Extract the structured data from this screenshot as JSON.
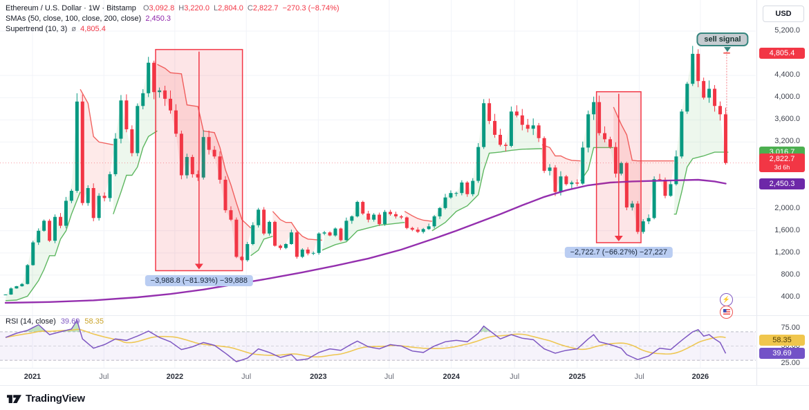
{
  "header": {
    "line1": {
      "title": "Ethereum / U.S. Dollar · 1W · Bitstamp",
      "o_label": "O",
      "o": "3,092.8",
      "h_label": "H",
      "h": "3,220.0",
      "l_label": "L",
      "l": "2,804.0",
      "c_label": "C",
      "c": "2,822.7",
      "change": "−270.3 (−8.74%)"
    },
    "line2": {
      "name": "SMAs (50, close, 100, close, 200, close)",
      "value": "2,450.3"
    },
    "line3": {
      "name": "Supertrend (10, 3)",
      "avg_symbol": "ø",
      "value": "4,805.4"
    }
  },
  "rsi_legend": {
    "name": "RSI (14, close)",
    "value_rsi": "39.69",
    "value_ma": "58.35"
  },
  "price_axis": {
    "currency": "USD",
    "ticks": [
      {
        "label": "5,200.0",
        "price": 5200
      },
      {
        "label": "4,400.0",
        "price": 4400
      },
      {
        "label": "4,000.0",
        "price": 4000
      },
      {
        "label": "3,600.0",
        "price": 3600
      },
      {
        "label": "3,200.0",
        "price": 3200
      },
      {
        "label": "2,000.0",
        "price": 2000
      },
      {
        "label": "1,600.0",
        "price": 1600
      },
      {
        "label": "1,200.0",
        "price": 1200
      },
      {
        "label": "800.0",
        "price": 800
      },
      {
        "label": "400.0",
        "price": 400
      }
    ],
    "badges": [
      {
        "label": "4,805.4",
        "price": 4805.4,
        "bg": "#f23645",
        "fg": "#ffffff"
      },
      {
        "label": "3,016.7",
        "price": 3016.7,
        "bg": "#4caf50",
        "fg": "#ffffff"
      },
      {
        "label": "2,822.7",
        "sub": "3d 6h",
        "price": 2822.7,
        "bg": "#f23645",
        "fg": "#ffffff"
      },
      {
        "label": "2,450.3",
        "price": 2450.3,
        "bg": "#6d28a8",
        "fg": "#ffffff"
      }
    ]
  },
  "rsi_axis": {
    "ticks": [
      {
        "label": "75.00",
        "value": 75
      },
      {
        "label": "50.00",
        "value": 50
      },
      {
        "label": "25.00",
        "value": 25
      }
    ],
    "badges": [
      {
        "label": "58.35",
        "value": 58.35,
        "bg": "#f0c64d",
        "fg": "#4d3c05"
      },
      {
        "label": "39.69",
        "value": 39.69,
        "bg": "#7352c7",
        "fg": "#ffffff"
      }
    ]
  },
  "time_axis": {
    "ticks": [
      {
        "label": "2021",
        "i": 4.9,
        "major": true
      },
      {
        "label": "Jul",
        "i": 17.9,
        "major": false
      },
      {
        "label": "2022",
        "i": 30.8,
        "major": true
      },
      {
        "label": "Jul",
        "i": 43.8,
        "major": false
      },
      {
        "label": "2023",
        "i": 56.9,
        "major": true
      },
      {
        "label": "Jul",
        "i": 69.8,
        "major": false
      },
      {
        "label": "2024",
        "i": 81.1,
        "major": true
      },
      {
        "label": "Jul",
        "i": 92.6,
        "major": false
      },
      {
        "label": "2025",
        "i": 104.0,
        "major": true
      },
      {
        "label": "Jul",
        "i": 115.3,
        "major": false
      },
      {
        "label": "2026",
        "i": 126.4,
        "major": true
      }
    ]
  },
  "chart_data": [
    {
      "type": "candlestick",
      "title": "Ethereum / U.S. Dollar, weekly, Bitstamp",
      "x_unit": "two-week steps, Nov 2020 to Nov 2025",
      "ylim": [
        400,
        5200
      ],
      "closes": [
        450,
        560,
        600,
        640,
        980,
        1390,
        1600,
        1780,
        1420,
        1850,
        1690,
        2140,
        2320,
        3930,
        2100,
        2370,
        1830,
        2230,
        2190,
        2620,
        3260,
        3950,
        3430,
        3000,
        3850,
        4080,
        4630,
        4100,
        4130,
        3980,
        3770,
        3350,
        2600,
        2930,
        2620,
        2560,
        3290,
        3060,
        2940,
        2520,
        1970,
        1800,
        1130,
        1070,
        1360,
        1700,
        1980,
        1550,
        1760,
        1330,
        1290,
        1360,
        1570,
        1130,
        1260,
        1190,
        1200,
        1550,
        1570,
        1515,
        1640,
        1430,
        1780,
        1860,
        2120,
        1910,
        1800,
        1890,
        1720,
        1940,
        1900,
        1860,
        1840,
        1650,
        1620,
        1580,
        1630,
        1680,
        1860,
        2010,
        2200,
        2280,
        2280,
        2470,
        2260,
        2500,
        3110,
        3900,
        3580,
        3330,
        3150,
        3130,
        3750,
        3680,
        3510,
        3440,
        3500,
        3270,
        2680,
        2740,
        2300,
        2580,
        2440,
        2470,
        2450,
        3100,
        3700,
        3920,
        3360,
        3250,
        3110,
        2630,
        2820,
        2020,
        2090,
        1580,
        1770,
        1830,
        2530,
        2520,
        2230,
        2440,
        2940,
        3750,
        4250,
        4790,
        4300,
        4000,
        4160,
        3850,
        3700,
        2822.7
      ],
      "last_price": 2822.7,
      "sma_200w": [
        [
          0,
          300
        ],
        [
          8,
          315
        ],
        [
          16,
          345
        ],
        [
          24,
          400
        ],
        [
          30,
          460
        ],
        [
          36,
          540
        ],
        [
          42,
          640
        ],
        [
          48,
          740
        ],
        [
          54,
          850
        ],
        [
          60,
          970
        ],
        [
          66,
          1100
        ],
        [
          72,
          1260
        ],
        [
          78,
          1460
        ],
        [
          82,
          1600
        ],
        [
          86,
          1750
        ],
        [
          90,
          1900
        ],
        [
          94,
          2060
        ],
        [
          98,
          2210
        ],
        [
          102,
          2330
        ],
        [
          106,
          2420
        ],
        [
          110,
          2470
        ],
        [
          114,
          2490
        ],
        [
          118,
          2500
        ],
        [
          122,
          2510
        ],
        [
          126,
          2520
        ],
        [
          129,
          2490
        ],
        [
          131,
          2450.3
        ]
      ],
      "supertrend": [
        {
          "dir": "up",
          "pts": [
            [
              0,
              340
            ],
            [
              2,
              350
            ],
            [
              4,
              420
            ],
            [
              5,
              560
            ],
            [
              6,
              700
            ],
            [
              7,
              900
            ],
            [
              8,
              1150
            ],
            [
              9,
              1150
            ],
            [
              10,
              1450
            ],
            [
              11,
              1600
            ],
            [
              12,
              1900
            ],
            [
              13.6,
              2300
            ]
          ]
        },
        {
          "dir": "down",
          "pts": [
            [
              13.6,
              4150
            ],
            [
              15,
              3900
            ],
            [
              16,
              3300
            ],
            [
              17,
              3200
            ],
            [
              19.6,
              3150
            ]
          ]
        },
        {
          "dir": "up",
          "pts": [
            [
              19.6,
              1900
            ],
            [
              21,
              2300
            ],
            [
              22,
              2600
            ],
            [
              23,
              2600
            ],
            [
              24,
              2750
            ],
            [
              25,
              3100
            ],
            [
              26,
              3300
            ],
            [
              27.6,
              3400
            ]
          ]
        },
        {
          "dir": "down",
          "pts": [
            [
              27.6,
              4600
            ],
            [
              29,
              4530
            ],
            [
              30,
              4450
            ],
            [
              32,
              4430
            ],
            [
              33,
              3870
            ],
            [
              35,
              3840
            ],
            [
              36,
              3400
            ],
            [
              38,
              3370
            ],
            [
              39,
              3100
            ],
            [
              40,
              2700
            ],
            [
              41,
              2430
            ],
            [
              42,
              2100
            ],
            [
              43,
              1800
            ],
            [
              44.6,
              1650
            ]
          ]
        },
        {
          "dir": "up",
          "pts": [
            [
              44.6,
              1150
            ],
            [
              46,
              1250
            ],
            [
              47,
              1450
            ],
            [
              48.6,
              1500
            ]
          ]
        },
        {
          "dir": "down",
          "pts": [
            [
              48.6,
              1950
            ],
            [
              50,
              1800
            ],
            [
              51,
              1750
            ],
            [
              52,
              1750
            ],
            [
              53,
              1600
            ],
            [
              54,
              1500
            ],
            [
              55,
              1450
            ],
            [
              57.6,
              1430
            ]
          ]
        },
        {
          "dir": "up",
          "pts": [
            [
              57.6,
              1250
            ],
            [
              60,
              1350
            ],
            [
              62,
              1400
            ],
            [
              64,
              1600
            ],
            [
              66,
              1650
            ],
            [
              68,
              1700
            ],
            [
              70,
              1720
            ],
            [
              72.6,
              1750
            ]
          ]
        },
        {
          "dir": "down",
          "pts": [
            [
              72.6,
              1950
            ],
            [
              74,
              1870
            ],
            [
              75,
              1820
            ],
            [
              76,
              1790
            ],
            [
              77.6,
              1770
            ]
          ]
        },
        {
          "dir": "up",
          "pts": [
            [
              77.6,
              1600
            ],
            [
              80,
              1750
            ],
            [
              82,
              1950
            ],
            [
              84,
              2050
            ],
            [
              86,
              2250
            ],
            [
              87,
              2700
            ],
            [
              88,
              3000
            ],
            [
              90,
              3020
            ],
            [
              92,
              3050
            ],
            [
              94,
              3070
            ],
            [
              97.6,
              3080
            ]
          ]
        },
        {
          "dir": "down",
          "pts": [
            [
              97.6,
              3150
            ],
            [
              99,
              3100
            ],
            [
              100,
              2950
            ],
            [
              101,
              2950
            ],
            [
              102,
              2900
            ],
            [
              103,
              2870
            ],
            [
              104.6,
              2860
            ]
          ]
        },
        {
          "dir": "up",
          "pts": [
            [
              104.6,
              2500
            ],
            [
              106,
              2700
            ],
            [
              107,
              3100
            ],
            [
              110.6,
              3100
            ]
          ]
        },
        {
          "dir": "down",
          "pts": [
            [
              110.6,
              3830
            ],
            [
              112,
              3520
            ],
            [
              113,
              3330
            ],
            [
              114,
              2870
            ],
            [
              115,
              2860
            ],
            [
              121.6,
              2860
            ]
          ]
        },
        {
          "dir": "up",
          "pts": [
            [
              121.6,
              1900
            ],
            [
              122,
              1900
            ],
            [
              123,
              2300
            ],
            [
              124,
              2750
            ],
            [
              125,
              2900
            ],
            [
              127,
              2950
            ],
            [
              129,
              3016.7
            ],
            [
              131.5,
              3016.7
            ]
          ]
        },
        {
          "dir": "down",
          "nofill": true,
          "pts": [
            [
              130.6,
              4805.4
            ],
            [
              131.8,
              4805.4
            ]
          ]
        }
      ]
    },
    {
      "type": "line",
      "title": "RSI (14, close) with smoothing MA",
      "ylim": [
        0,
        100
      ],
      "levels": [
        70,
        50,
        30
      ],
      "rsi": [
        [
          0,
          62
        ],
        [
          2,
          68
        ],
        [
          4,
          72
        ],
        [
          6,
          80
        ],
        [
          8,
          66
        ],
        [
          10,
          70
        ],
        [
          12,
          74
        ],
        [
          13,
          86
        ],
        [
          14,
          60
        ],
        [
          16,
          47
        ],
        [
          18,
          52
        ],
        [
          20,
          60
        ],
        [
          22,
          58
        ],
        [
          24,
          64
        ],
        [
          26,
          71
        ],
        [
          28,
          62
        ],
        [
          30,
          56
        ],
        [
          32,
          45
        ],
        [
          34,
          49
        ],
        [
          36,
          55
        ],
        [
          38,
          51
        ],
        [
          40,
          40
        ],
        [
          42,
          28
        ],
        [
          44,
          33
        ],
        [
          46,
          46
        ],
        [
          48,
          41
        ],
        [
          50,
          34
        ],
        [
          52,
          38
        ],
        [
          53,
          30
        ],
        [
          55,
          32
        ],
        [
          57,
          41
        ],
        [
          59,
          46
        ],
        [
          61,
          44
        ],
        [
          63,
          53
        ],
        [
          64,
          57
        ],
        [
          66,
          49
        ],
        [
          68,
          46
        ],
        [
          70,
          52
        ],
        [
          72,
          50
        ],
        [
          74,
          43
        ],
        [
          76,
          41
        ],
        [
          78,
          50
        ],
        [
          80,
          56
        ],
        [
          82,
          58
        ],
        [
          84,
          56
        ],
        [
          86,
          68
        ],
        [
          87,
          78
        ],
        [
          88,
          72
        ],
        [
          90,
          60
        ],
        [
          92,
          66
        ],
        [
          94,
          61
        ],
        [
          96,
          59
        ],
        [
          98,
          46
        ],
        [
          100,
          40
        ],
        [
          102,
          44
        ],
        [
          104,
          46
        ],
        [
          106,
          60
        ],
        [
          107,
          66
        ],
        [
          108,
          56
        ],
        [
          110,
          52
        ],
        [
          112,
          47
        ],
        [
          113,
          38
        ],
        [
          115,
          31
        ],
        [
          117,
          36
        ],
        [
          119,
          47
        ],
        [
          121,
          45
        ],
        [
          123,
          58
        ],
        [
          125,
          70
        ],
        [
          126,
          73
        ],
        [
          127,
          64
        ],
        [
          128,
          66
        ],
        [
          129,
          60
        ],
        [
          130,
          55
        ],
        [
          131,
          39.69
        ]
      ],
      "last_rsi": 39.69,
      "last_ma": 58.35
    }
  ],
  "annotations": {
    "sell_signal": {
      "label": "sell signal",
      "i": 131,
      "top_price": 4805.4,
      "line_bottom_price": 2950
    },
    "measures": [
      {
        "label": "−3,988.8 (−81.93%) −39,888",
        "i1": 27.3,
        "i2": 43.1,
        "top_price": 4868,
        "bottom_price": 880
      },
      {
        "label": "−2,722.7 (−66.27%) −27,227",
        "i1": 107.5,
        "i2": 115.6,
        "top_price": 4107,
        "bottom_price": 1385
      }
    ]
  },
  "colors": {
    "up": "#089981",
    "down": "#f23645",
    "st_up": "#4caf50",
    "st_down": "#ef5350",
    "st_up_fill": "rgba(76,175,80,0.10)",
    "st_down_fill": "rgba(244,67,54,0.11)",
    "box_fill": "rgba(242,54,69,0.13)",
    "box_border": "#f23645",
    "sma": "#8e24aa",
    "rsi": "#7e57c2",
    "rsi_ma": "#edc240",
    "rsi_band": "rgba(126,87,194,0.07)",
    "grid": "#f1f3f8"
  },
  "footer": {
    "brand": "TradingView"
  }
}
